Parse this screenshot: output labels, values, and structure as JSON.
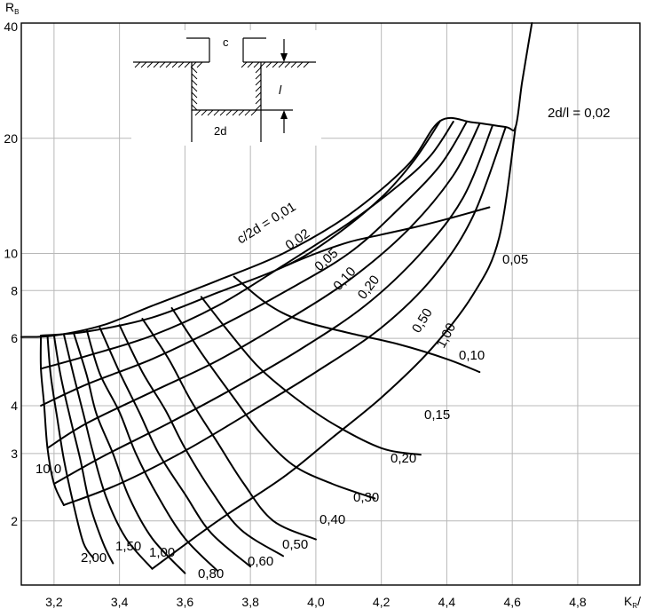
{
  "chart_data": {
    "type": "line",
    "title": "",
    "xlabel": "K",
    "xlabel_sub": "R",
    "xlabel_suffix": "/",
    "ylabel": "R",
    "ylabel_sub": "B",
    "x_axis": {
      "min": 3.1,
      "max": 4.99,
      "ticks": [
        3.2,
        3.4,
        3.6,
        3.8,
        4.0,
        4.2,
        4.4,
        4.6,
        4.8
      ],
      "tick_labels": [
        "3,2",
        "3,4",
        "3,6",
        "3,8",
        "4,0",
        "4,2",
        "4,4",
        "4,6",
        "4,8"
      ]
    },
    "y_axis": {
      "scale": "log",
      "min": 1.36,
      "max": 40,
      "ticks": [
        2,
        3,
        4,
        6,
        8,
        10,
        20,
        40
      ],
      "tick_labels": [
        "2",
        "3",
        "4",
        "6",
        "8",
        "10",
        "20",
        "40"
      ]
    },
    "grid": true,
    "curves_2d_l": [
      {
        "label": "2d/l = 0,02",
        "points": [
          [
            3.1,
            6.05
          ],
          [
            3.2,
            6.1
          ],
          [
            3.35,
            6.5
          ],
          [
            3.5,
            7.3
          ],
          [
            3.7,
            8.5
          ],
          [
            3.9,
            10.0
          ],
          [
            4.1,
            12.6
          ],
          [
            4.28,
            17.0
          ],
          [
            4.38,
            22.2
          ],
          [
            4.48,
            22.0
          ],
          [
            4.58,
            21.4
          ],
          [
            4.61,
            21.4
          ],
          [
            4.63,
            28.0
          ],
          [
            4.66,
            40.0
          ]
        ]
      },
      {
        "label": "0,05",
        "points": [
          [
            3.91,
            9.3
          ],
          [
            4.0,
            10.0
          ],
          [
            4.1,
            10.7
          ],
          [
            4.2,
            11.2
          ],
          [
            4.3,
            11.7
          ],
          [
            4.4,
            12.3
          ],
          [
            4.53,
            13.2
          ]
        ]
      },
      {
        "label": "0,10",
        "points": [
          [
            3.75,
            8.7
          ],
          [
            3.85,
            7.4
          ],
          [
            3.95,
            6.7
          ],
          [
            4.1,
            6.2
          ],
          [
            4.25,
            5.8
          ],
          [
            4.4,
            5.3
          ],
          [
            4.5,
            4.9
          ]
        ]
      },
      {
        "label": "0,15",
        "points": [
          [
            3.65,
            7.7
          ],
          [
            3.73,
            6.3
          ],
          [
            3.82,
            5.1
          ],
          [
            3.92,
            4.3
          ],
          [
            4.05,
            3.6
          ],
          [
            4.2,
            3.1
          ],
          [
            4.32,
            2.98
          ]
        ]
      },
      {
        "label": "0,20",
        "points": [
          [
            3.56,
            7.2
          ],
          [
            3.65,
            5.5
          ],
          [
            3.74,
            4.3
          ],
          [
            3.83,
            3.4
          ],
          [
            3.93,
            2.8
          ],
          [
            4.05,
            2.5
          ],
          [
            4.18,
            2.29
          ]
        ]
      },
      {
        "label": "0,30",
        "points": [
          [
            3.47,
            6.75
          ],
          [
            3.55,
            5.3
          ],
          [
            3.62,
            4.1
          ],
          [
            3.7,
            3.2
          ],
          [
            3.78,
            2.5
          ],
          [
            3.87,
            2.0
          ],
          [
            4.0,
            1.79
          ]
        ]
      },
      {
        "label": "0,40",
        "points": [
          [
            3.4,
            6.5
          ],
          [
            3.47,
            4.9
          ],
          [
            3.54,
            3.9
          ],
          [
            3.6,
            3.1
          ],
          [
            3.68,
            2.4
          ],
          [
            3.77,
            1.9
          ],
          [
            3.9,
            1.62
          ]
        ]
      },
      {
        "label": "0,50",
        "points": [
          [
            3.34,
            6.4
          ],
          [
            3.4,
            4.9
          ],
          [
            3.46,
            3.85
          ],
          [
            3.52,
            3.0
          ],
          [
            3.6,
            2.35
          ],
          [
            3.68,
            1.86
          ],
          [
            3.8,
            1.52
          ]
        ]
      },
      {
        "label": "0,60",
        "points": [
          [
            3.3,
            6.3
          ],
          [
            3.34,
            4.85
          ],
          [
            3.4,
            3.85
          ],
          [
            3.45,
            3.0
          ],
          [
            3.52,
            2.3
          ],
          [
            3.6,
            1.8
          ],
          [
            3.7,
            1.48
          ]
        ]
      },
      {
        "label": "0,80",
        "points": [
          [
            3.26,
            6.2
          ],
          [
            3.3,
            4.8
          ],
          [
            3.33,
            3.8
          ],
          [
            3.38,
            3.0
          ],
          [
            3.43,
            2.3
          ],
          [
            3.5,
            1.8
          ],
          [
            3.6,
            1.46
          ]
        ]
      },
      {
        "label": "1,00",
        "points": [
          [
            3.23,
            6.15
          ],
          [
            3.26,
            4.8
          ],
          [
            3.29,
            3.8
          ],
          [
            3.32,
            3.0
          ],
          [
            3.36,
            2.3
          ],
          [
            3.42,
            1.8
          ],
          [
            3.5,
            1.5
          ]
        ]
      },
      {
        "label": "1,50",
        "points": [
          [
            3.2,
            6.1
          ],
          [
            3.22,
            4.8
          ],
          [
            3.25,
            3.7
          ],
          [
            3.28,
            2.9
          ],
          [
            3.31,
            2.2
          ],
          [
            3.35,
            1.75
          ],
          [
            3.38,
            1.55
          ]
        ]
      },
      {
        "label": "2,00",
        "points": [
          [
            3.18,
            6.1
          ],
          [
            3.19,
            4.8
          ],
          [
            3.21,
            3.7
          ],
          [
            3.23,
            2.9
          ],
          [
            3.26,
            2.2
          ],
          [
            3.29,
            1.75
          ],
          [
            3.32,
            1.6
          ]
        ]
      },
      {
        "label": "10,0",
        "points": [
          [
            3.16,
            6.1
          ],
          [
            3.16,
            5.0
          ],
          [
            3.17,
            4.0
          ],
          [
            3.18,
            3.1
          ],
          [
            3.2,
            2.5
          ],
          [
            3.23,
            2.2
          ]
        ]
      }
    ],
    "curves_c_2d": [
      {
        "label": "c/2d = 0,01",
        "points": [
          [
            3.16,
            6.1
          ],
          [
            3.3,
            6.25
          ],
          [
            3.5,
            6.8
          ],
          [
            3.7,
            7.9
          ],
          [
            3.91,
            9.3
          ],
          [
            4.05,
            11.0
          ],
          [
            4.2,
            14.0
          ],
          [
            4.3,
            17.5
          ],
          [
            4.38,
            22.2
          ]
        ]
      },
      {
        "label": "0,02",
        "points": [
          [
            3.16,
            5.0
          ],
          [
            3.3,
            5.4
          ],
          [
            3.5,
            6.1
          ],
          [
            3.7,
            7.3
          ],
          [
            3.9,
            9.3
          ],
          [
            4.1,
            12.0
          ],
          [
            4.25,
            15.0
          ],
          [
            4.35,
            18.0
          ],
          [
            4.42,
            22.1
          ]
        ]
      },
      {
        "label": "0,05",
        "points": [
          [
            3.16,
            4.0
          ],
          [
            3.3,
            4.55
          ],
          [
            3.5,
            5.3
          ],
          [
            3.7,
            6.4
          ],
          [
            3.9,
            7.9
          ],
          [
            4.1,
            10.0
          ],
          [
            4.25,
            13.0
          ],
          [
            4.38,
            17.0
          ],
          [
            4.46,
            22.0
          ]
        ]
      },
      {
        "label": "0,10",
        "points": [
          [
            3.18,
            3.1
          ],
          [
            3.3,
            3.6
          ],
          [
            3.5,
            4.35
          ],
          [
            3.7,
            5.25
          ],
          [
            3.9,
            6.6
          ],
          [
            4.1,
            8.5
          ],
          [
            4.28,
            11.5
          ],
          [
            4.42,
            16.0
          ],
          [
            4.5,
            21.8
          ]
        ]
      },
      {
        "label": "0,20",
        "points": [
          [
            3.2,
            2.5
          ],
          [
            3.35,
            2.95
          ],
          [
            3.55,
            3.6
          ],
          [
            3.75,
            4.45
          ],
          [
            3.95,
            5.6
          ],
          [
            4.15,
            7.3
          ],
          [
            4.32,
            10.0
          ],
          [
            4.45,
            14.0
          ],
          [
            4.54,
            21.6
          ]
        ]
      },
      {
        "label": "0,50",
        "points": [
          [
            3.23,
            2.2
          ],
          [
            3.4,
            2.5
          ],
          [
            3.6,
            3.05
          ],
          [
            3.8,
            3.85
          ],
          [
            4.0,
            4.9
          ],
          [
            4.2,
            6.4
          ],
          [
            4.36,
            8.7
          ],
          [
            4.48,
            12.5
          ],
          [
            4.58,
            21.4
          ]
        ]
      },
      {
        "label": "1,00",
        "points": [
          [
            3.5,
            1.5
          ],
          [
            3.7,
            2.0
          ],
          [
            3.9,
            2.6
          ],
          [
            4.05,
            3.3
          ],
          [
            4.2,
            4.2
          ],
          [
            4.35,
            5.6
          ],
          [
            4.48,
            7.8
          ],
          [
            4.56,
            11.0
          ],
          [
            4.61,
            21.4
          ]
        ]
      }
    ],
    "inset": {
      "c_label": "c",
      "l_label": "l",
      "d_label": "2d"
    }
  }
}
